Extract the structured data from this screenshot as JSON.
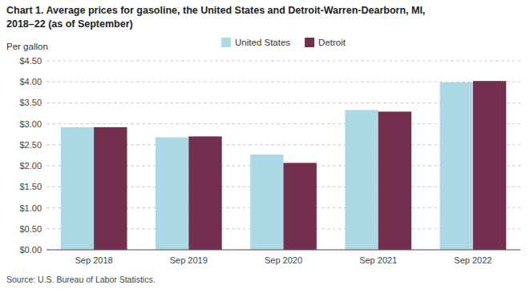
{
  "chart_data": {
    "type": "bar",
    "title": "Chart 1. Average prices for gasoline, the United States and Detroit-Warren-Dearborn, MI,",
    "subtitle": "2018–22 (as of September)",
    "ylabel": "Per gallon",
    "categories": [
      "Sep 2018",
      "Sep 2019",
      "Sep 2020",
      "Sep 2021",
      "Sep 2022"
    ],
    "series": [
      {
        "name": "United States",
        "color": "#add8e6",
        "values": [
          2.92,
          2.68,
          2.27,
          3.33,
          3.99
        ]
      },
      {
        "name": "Detroit",
        "color": "#722F4E",
        "values": [
          2.92,
          2.7,
          2.07,
          3.29,
          4.02
        ]
      }
    ],
    "ylim": [
      0,
      4.5
    ],
    "yticks": [
      {
        "value": 0.0,
        "label": "$0.00"
      },
      {
        "value": 0.5,
        "label": "$0.50"
      },
      {
        "value": 1.0,
        "label": "$1.00"
      },
      {
        "value": 1.5,
        "label": "$1.50"
      },
      {
        "value": 2.0,
        "label": "$2.00"
      },
      {
        "value": 2.5,
        "label": "$2.50"
      },
      {
        "value": 3.0,
        "label": "$3.00"
      },
      {
        "value": 3.5,
        "label": "$3.50"
      },
      {
        "value": 4.0,
        "label": "$4.00"
      },
      {
        "value": 4.5,
        "label": "$4.50"
      }
    ],
    "grid": true,
    "legend": "top",
    "annotations": [
      "Source: U.S. Bureau of Labor Statistics."
    ]
  }
}
